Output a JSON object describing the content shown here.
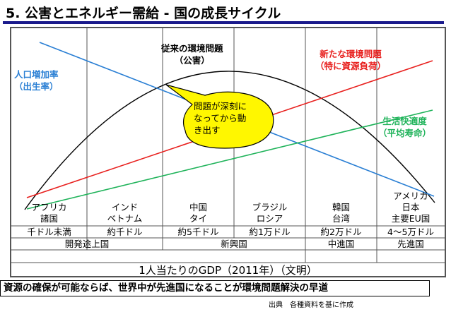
{
  "title": "5.  公害とエネルギー需給 - 国の成長サイクル",
  "colors": {
    "title_rule": "#1a1a8c",
    "population": "#2a7fd4",
    "environment": "#000000",
    "new_env": "#e8201e",
    "life_quality": "#1fb35a",
    "bubble": "#fff700"
  },
  "curves": {
    "population": {
      "label": [
        "人口増加率",
        "（出生率）"
      ]
    },
    "environment": {
      "label": [
        "従来の環境問題",
        "（公害）"
      ]
    },
    "new_env": {
      "label": [
        "新たな環境問題",
        "（特に資源負荷）"
      ]
    },
    "life_quality": {
      "label": [
        "生活快適度",
        "（平均寿命）"
      ]
    }
  },
  "callout": {
    "lines": [
      "問題が深刻に",
      "なってから動",
      "き出す"
    ]
  },
  "countries": [
    {
      "line1": "アフリカ",
      "line2": "諸国",
      "income": "千ドル未満"
    },
    {
      "line1": "インド",
      "line2": "ベトナム",
      "income": "約千ドル"
    },
    {
      "line1": "中国",
      "line2": "タイ",
      "income": "約5千ドル"
    },
    {
      "line1": "ブラジル",
      "line2": "ロシア",
      "income": "約1万ドル"
    },
    {
      "line1": "韓国",
      "line2": "台湾",
      "income": "約2万ドル"
    },
    {
      "line1": "アメリカ",
      "line1b": "日本",
      "line2": "主要EU国",
      "income": "4～5万ドル"
    }
  ],
  "stages": [
    "開発途上国",
    "新興国",
    "中進国",
    "先進国"
  ],
  "gdp_axis_label": "1人当たりのGDP（2011年）（文明）",
  "conclusion": "資源の確保が可能ならば、世界中が先進国になることが環境問題解決の早道",
  "source": "出典　各種資料を基に作成"
}
